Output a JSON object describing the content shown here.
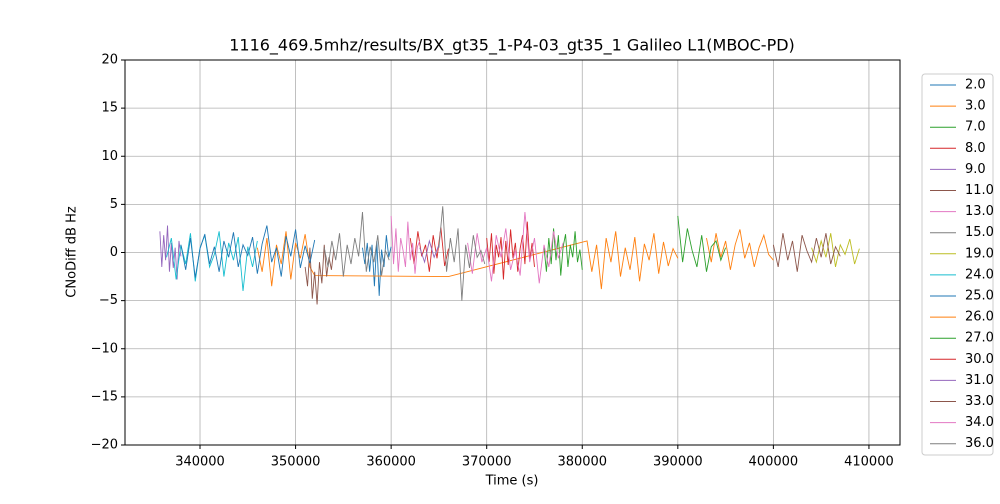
{
  "chart_data": {
    "type": "line",
    "title": "1116_469.5mhz/results/BX_gt35_1-P4-03_gt35_1 Galileo L1(MBOC-PD)",
    "xlabel": "Time (s)",
    "ylabel": "CNoDiff dB Hz",
    "xlim": [
      332150,
      413250
    ],
    "ylim": [
      -20,
      20
    ],
    "xticks": [
      340000,
      350000,
      360000,
      370000,
      380000,
      390000,
      400000,
      410000
    ],
    "yticks": [
      {
        "value": -20,
        "label": "−20"
      },
      {
        "value": -15,
        "label": "−15"
      },
      {
        "value": -10,
        "label": "−10"
      },
      {
        "value": -5,
        "label": "−5"
      },
      0,
      5,
      10,
      15,
      20
    ],
    "grid": true,
    "legend": "outside right",
    "series": [
      {
        "name": "2.0",
        "color": "#1f77b4",
        "x": [
          357000,
          357250,
          357500,
          357750,
          358000,
          358250,
          358500,
          358750,
          359000,
          359250,
          359500,
          359750,
          360000
        ],
        "values": [
          0.5,
          -1.2,
          1.0,
          -2.0,
          0.8,
          -3.5,
          1.2,
          -4.5,
          0.3,
          -1.5,
          1.8,
          -0.5,
          0.6
        ]
      },
      {
        "name": "3.0",
        "color": "#ff7f0e",
        "x": [
          346000,
          346500,
          347000,
          347500,
          348000,
          348500,
          349000,
          349500,
          350000,
          350500,
          351000,
          351500,
          352000,
          366000,
          380500,
          381000,
          381500,
          382000,
          382500,
          383000,
          383500,
          384000,
          384500,
          385000,
          385500,
          386000,
          386500,
          387000,
          387500,
          388000,
          388500,
          389000,
          389500,
          390000
        ],
        "values": [
          0.5,
          -2.0,
          1.5,
          -3.5,
          0.8,
          -1.2,
          2.2,
          -2.8,
          1.0,
          -0.6,
          1.9,
          -1.5,
          -2.4,
          -2.5,
          1.2,
          -2.0,
          0.8,
          -3.8,
          1.5,
          -1.0,
          2.2,
          -2.5,
          0.5,
          -1.8,
          1.6,
          -3.0,
          0.9,
          -0.8,
          2.0,
          -2.2,
          1.1,
          -1.4,
          0.4,
          -0.6
        ]
      },
      {
        "name": "7.0",
        "color": "#2ca02c",
        "x": [
          376000,
          376250,
          376500,
          376750,
          377000,
          377250,
          377500,
          377750,
          378000,
          378250,
          378500,
          378750,
          379000,
          379250,
          379500,
          379750,
          380000
        ],
        "values": [
          0.5,
          -2.0,
          1.5,
          -1.2,
          2.5,
          -0.8,
          1.8,
          -2.4,
          0.6,
          1.9,
          -1.5,
          0.8,
          -0.5,
          2.2,
          -1.0,
          0.3,
          -1.8
        ]
      },
      {
        "name": "8.0",
        "color": "#d62728",
        "x": [
          370000,
          370250,
          370500,
          370750,
          371000,
          371250,
          371500,
          371750,
          372000,
          372250,
          372500,
          372750,
          373000,
          373250,
          373500,
          373750,
          374000,
          374250,
          374500,
          374750,
          375000
        ],
        "values": [
          1.5,
          -1.0,
          2.0,
          -2.2,
          0.8,
          -0.5,
          1.6,
          -2.8,
          1.2,
          -1.3,
          2.4,
          -0.6,
          1.0,
          -2.0,
          0.4,
          1.8,
          -1.2,
          3.2,
          -0.8,
          1.0,
          -1.5
        ]
      },
      {
        "name": "9.0",
        "color": "#9467bd",
        "x": [
          335800,
          336000,
          336200,
          336400,
          336600,
          336800,
          337000,
          337200,
          337400,
          337600,
          337800,
          338000
        ],
        "values": [
          2.2,
          -1.5,
          1.8,
          -0.8,
          2.8,
          -2.0,
          1.0,
          -1.6,
          0.5,
          -2.8,
          1.2,
          -0.4
        ]
      },
      {
        "name": "11.0",
        "color": "#8c564b",
        "x": [
          351000,
          351250,
          351500,
          351750,
          352000,
          352250,
          352500,
          352750,
          353000,
          353250,
          353500,
          353750,
          354000
        ],
        "values": [
          -1.5,
          -3.5,
          0.5,
          -4.8,
          -2.0,
          -5.4,
          -1.0,
          -3.2,
          0.8,
          -2.5,
          -0.5,
          -1.8,
          0.3
        ]
      },
      {
        "name": "13.0",
        "color": "#e377c2",
        "x": [
          368000,
          368500,
          369000,
          369500,
          370000,
          370500,
          371000,
          371500,
          372000,
          372500,
          373000,
          373500,
          374000,
          374500,
          375000,
          375500,
          376000,
          376500,
          377000,
          377500,
          378000
        ],
        "values": [
          1.0,
          -2.2,
          2.0,
          -1.0,
          0.5,
          -3.0,
          1.8,
          -0.5,
          2.5,
          -1.8,
          0.2,
          -2.4,
          4.2,
          -1.0,
          1.5,
          -3.2,
          0.8,
          -1.5,
          2.2,
          -0.6,
          1.0
        ]
      },
      {
        "name": "15.0",
        "color": "#7f7f7f",
        "x": [
          353000,
          353400,
          353800,
          354200,
          354600,
          355000,
          355400,
          355800,
          356200,
          356600,
          357000,
          357400,
          357800,
          358200,
          358600,
          359000,
          359400,
          359800
        ],
        "values": [
          0.5,
          -1.5,
          1.2,
          -0.8,
          2.0,
          -2.5,
          0.8,
          -1.2,
          1.5,
          -0.4,
          4.2,
          -2.0,
          0.6,
          -1.0,
          1.8,
          -2.4,
          0.2,
          -0.8
        ]
      },
      {
        "name": "19.0",
        "color": "#bcbd22",
        "x": [
          404000,
          404500,
          405000,
          405500,
          406000,
          406500,
          407000,
          407500,
          408000,
          408500,
          409000
        ],
        "values": [
          0.5,
          -1.0,
          1.2,
          -0.5,
          2.0,
          -1.5,
          0.8,
          -0.2,
          1.4,
          -1.2,
          0.4
        ]
      },
      {
        "name": "24.0",
        "color": "#17becf",
        "x": [
          336500,
          337000,
          337500,
          338000,
          338500,
          339000,
          339500,
          340000,
          340500,
          341000,
          341500,
          342000,
          342500,
          343000,
          343500,
          344000,
          344500,
          345000,
          345500,
          346000
        ],
        "values": [
          -0.5,
          1.5,
          -2.8,
          0.8,
          -1.2,
          2.0,
          -3.0,
          0.5,
          1.8,
          -1.5,
          -0.2,
          2.2,
          -2.5,
          1.0,
          -0.8,
          1.6,
          -4.0,
          0.6,
          -1.5,
          1.2
        ]
      },
      {
        "name": "25.0",
        "color": "#1f77b4",
        "x": [
          338000,
          338500,
          339000,
          339500,
          340000,
          340500,
          341000,
          341500,
          342000,
          342500,
          343000,
          343500,
          344000,
          344500,
          345000,
          345500,
          346000,
          346500,
          347000,
          347500,
          348000,
          348500,
          349000,
          349500,
          350000,
          350500,
          351000,
          351500,
          352000
        ],
        "values": [
          0.8,
          -1.8,
          1.5,
          -2.6,
          0.4,
          1.9,
          -1.2,
          0.6,
          -2.0,
          1.2,
          -0.5,
          2.1,
          -1.5,
          0.8,
          -0.3,
          1.6,
          -2.2,
          0.9,
          2.8,
          -1.0,
          0.5,
          -2.5,
          1.7,
          -0.4,
          2.4,
          -1.6,
          0.7,
          -1.1,
          1.3
        ]
      },
      {
        "name": "26.0",
        "color": "#ff7f0e",
        "x": [
          393000,
          393500,
          394000,
          394500,
          395000,
          395500,
          396000,
          396500,
          397000,
          397500,
          398000,
          398500,
          399000,
          399500,
          400000
        ],
        "values": [
          1.5,
          -1.0,
          2.0,
          -0.5,
          1.2,
          -1.8,
          0.8,
          2.4,
          -0.6,
          1.0,
          -1.5,
          0.5,
          1.8,
          -0.2,
          -0.8
        ]
      },
      {
        "name": "27.0",
        "color": "#2ca02c",
        "x": [
          390000,
          390500,
          391000,
          391500,
          392000,
          392500,
          393000,
          393500,
          394000,
          394500,
          395000
        ],
        "values": [
          3.8,
          -1.0,
          2.5,
          0.2,
          -1.5,
          1.8,
          -2.0,
          0.6,
          1.2,
          -0.8,
          0.5
        ]
      },
      {
        "name": "30.0",
        "color": "#d62728",
        "x": [
          362000,
          362400,
          362800,
          363200,
          363600,
          364000,
          364400,
          364800,
          365200,
          365600,
          366000
        ],
        "values": [
          1.5,
          -1.2,
          2.2,
          -0.4,
          0.8,
          -2.0,
          1.8,
          -0.6,
          2.6,
          -1.4,
          0.4
        ]
      },
      {
        "name": "31.0",
        "color": "#9467bd",
        "x": [
          363000,
          363500,
          364000,
          364500,
          365000
        ],
        "values": [
          0.5,
          -1.0,
          1.2,
          -0.5,
          0.8
        ]
      },
      {
        "name": "33.0",
        "color": "#8c564b",
        "x": [
          400000,
          400500,
          401000,
          401500,
          402000,
          402500,
          403000,
          403500,
          404000,
          404500,
          405000,
          405500,
          406000,
          406500,
          407000
        ],
        "values": [
          0.8,
          -1.5,
          2.0,
          -0.8,
          1.2,
          -2.0,
          1.8,
          0.2,
          -1.0,
          1.5,
          -0.5,
          2.0,
          -1.2,
          0.6,
          -0.4
        ]
      },
      {
        "name": "34.0",
        "color": "#e377c2",
        "x": [
          360000,
          360250,
          360500,
          360750,
          361000,
          361250,
          361500,
          361750,
          362000,
          362250,
          362500,
          362750,
          363000
        ],
        "values": [
          3.8,
          -1.2,
          2.5,
          -2.0,
          1.5,
          0.2,
          -1.5,
          3.2,
          -0.8,
          1.0,
          -2.2,
          0.6,
          1.2
        ]
      },
      {
        "name": "36.0",
        "color": "#7f7f7f",
        "x": [
          365000,
          365400,
          365800,
          366200,
          366600,
          367000,
          367400,
          367800,
          368200,
          368600,
          369000,
          369400,
          369800
        ],
        "values": [
          0.5,
          4.8,
          -2.0,
          1.5,
          -1.0,
          2.5,
          -5.0,
          0.8,
          -1.6,
          1.8,
          -0.5,
          0.2,
          -1.2
        ]
      }
    ]
  }
}
